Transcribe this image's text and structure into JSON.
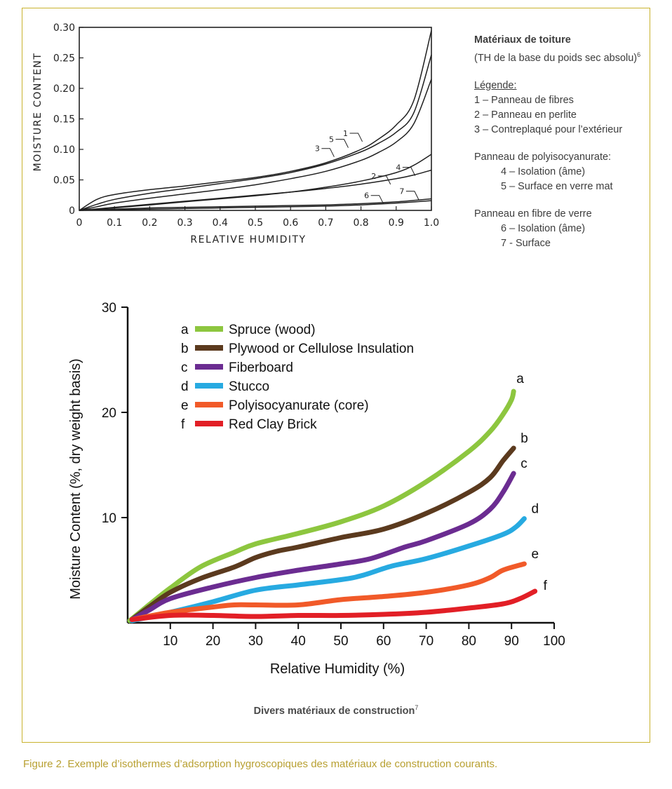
{
  "side_legend": {
    "title": "Matériaux de toiture",
    "subtitle": "(TH de la base du poids sec absolu)",
    "subtitle_sup": "6",
    "legend_heading": "Légende:",
    "items_roof": [
      "1 – Panneau de fibres",
      "2 – Panneau en perlite",
      "3 – Contreplaqué pour l’extérieur"
    ],
    "polyiso_heading": "Panneau de polyisocyanurate:",
    "items_polyiso": [
      "4 – Isolation (âme)",
      "5 – Surface en verre mat"
    ],
    "fiberglass_heading": "Panneau en fibre de verre",
    "items_fiberglass": [
      "6 – Isolation (âme)",
      "7 - Surface"
    ]
  },
  "bottom_caption": {
    "text": "Divers matériaux de construction",
    "sup": "7"
  },
  "figure_caption": "Figure 2.  Exemple d’isothermes d’adsorption hygroscopiques des matériaux de construction courants.",
  "chart_data": [
    {
      "type": "line",
      "xlabel": "RELATIVE HUMIDITY",
      "ylabel": "MOISTURE CONTENT",
      "xlim": [
        0,
        1.0
      ],
      "ylim": [
        0,
        0.3
      ],
      "x_ticks": [
        "0",
        "0.1",
        "0.2",
        "0.3",
        "0.4",
        "0.5",
        "0.6",
        "0.7",
        "0.8",
        "0.9",
        "1.0"
      ],
      "y_ticks": [
        "0",
        "0.05",
        "0.10",
        "0.15",
        "0.20",
        "0.25",
        "0.30"
      ],
      "grid": false,
      "series": [
        {
          "name": "1",
          "x": [
            0,
            0.05,
            0.1,
            0.2,
            0.3,
            0.4,
            0.5,
            0.6,
            0.7,
            0.8,
            0.85,
            0.9,
            0.95,
            1.0
          ],
          "y": [
            0,
            0.018,
            0.026,
            0.034,
            0.04,
            0.047,
            0.054,
            0.064,
            0.078,
            0.1,
            0.117,
            0.14,
            0.18,
            0.295
          ]
        },
        {
          "name": "3",
          "x": [
            0,
            0.05,
            0.1,
            0.2,
            0.3,
            0.4,
            0.5,
            0.6,
            0.7,
            0.8,
            0.85,
            0.9,
            0.95,
            1.0
          ],
          "y": [
            0,
            0.01,
            0.018,
            0.028,
            0.036,
            0.044,
            0.052,
            0.062,
            0.076,
            0.096,
            0.11,
            0.128,
            0.16,
            0.255
          ]
        },
        {
          "name": "5",
          "x": [
            0,
            0.05,
            0.1,
            0.2,
            0.3,
            0.4,
            0.5,
            0.6,
            0.7,
            0.8,
            0.85,
            0.9,
            0.95,
            1.0
          ],
          "y": [
            0,
            0.006,
            0.012,
            0.02,
            0.027,
            0.034,
            0.042,
            0.052,
            0.064,
            0.082,
            0.095,
            0.112,
            0.142,
            0.215
          ]
        },
        {
          "name": "2",
          "x": [
            0,
            0.1,
            0.2,
            0.3,
            0.4,
            0.5,
            0.6,
            0.7,
            0.8,
            0.9,
            0.95,
            1.0
          ],
          "y": [
            0,
            0.005,
            0.01,
            0.015,
            0.02,
            0.025,
            0.03,
            0.036,
            0.043,
            0.052,
            0.058,
            0.066
          ]
        },
        {
          "name": "4",
          "x": [
            0,
            0.1,
            0.2,
            0.3,
            0.4,
            0.5,
            0.6,
            0.7,
            0.8,
            0.9,
            0.95,
            1.0
          ],
          "y": [
            0,
            0.004,
            0.009,
            0.014,
            0.019,
            0.024,
            0.03,
            0.038,
            0.048,
            0.062,
            0.074,
            0.092
          ]
        },
        {
          "name": "6",
          "x": [
            0,
            0.1,
            0.2,
            0.3,
            0.4,
            0.5,
            0.6,
            0.7,
            0.8,
            0.9,
            1.0
          ],
          "y": [
            0,
            0.002,
            0.004,
            0.005,
            0.006,
            0.007,
            0.008,
            0.009,
            0.011,
            0.014,
            0.019
          ]
        },
        {
          "name": "7",
          "x": [
            0,
            0.1,
            0.2,
            0.3,
            0.4,
            0.5,
            0.6,
            0.7,
            0.8,
            0.9,
            1.0
          ],
          "y": [
            0,
            0.001,
            0.002,
            0.003,
            0.004,
            0.005,
            0.006,
            0.007,
            0.009,
            0.012,
            0.016
          ]
        }
      ]
    },
    {
      "type": "line",
      "xlabel": "Relative Humidity (%)",
      "ylabel": "Moisture Content (%, dry weight basis)",
      "xlim": [
        0,
        100
      ],
      "ylim": [
        0,
        30
      ],
      "x_ticks": [
        "10",
        "20",
        "30",
        "40",
        "50",
        "60",
        "70",
        "80",
        "90",
        "100"
      ],
      "y_ticks": [
        "10",
        "20",
        "30"
      ],
      "grid": false,
      "legend_position": "top-left",
      "series": [
        {
          "name": "Spruce (wood)",
          "letter": "a",
          "color": "#8dc63f",
          "x": [
            0.5,
            5,
            10,
            17,
            25,
            30,
            40,
            50,
            60,
            70,
            80,
            85,
            88,
            90,
            90.5
          ],
          "y": [
            0.2,
            1.7,
            3.3,
            5.3,
            6.7,
            7.5,
            8.5,
            9.6,
            11.1,
            13.4,
            16.3,
            18.2,
            19.8,
            21.2,
            22
          ]
        },
        {
          "name": "Plywood or Cellulose Insulation",
          "letter": "b",
          "color": "#5b3a1e",
          "x": [
            1,
            5,
            10,
            17,
            25,
            30,
            35,
            40,
            50,
            60,
            70,
            80,
            85,
            88,
            90.5
          ],
          "y": [
            0.3,
            1.5,
            2.9,
            4.2,
            5.3,
            6.2,
            6.8,
            7.2,
            8.1,
            8.9,
            10.4,
            12.4,
            13.8,
            15.4,
            16.6
          ]
        },
        {
          "name": "Fiberboard",
          "letter": "c",
          "color": "#6b2c91",
          "x": [
            1,
            5,
            10,
            20,
            30,
            40,
            50,
            57,
            65,
            70,
            80,
            85,
            88,
            90.5
          ],
          "y": [
            0.3,
            1.2,
            2.3,
            3.4,
            4.3,
            5.0,
            5.6,
            6.1,
            7.2,
            7.8,
            9.4,
            10.8,
            12.4,
            14.2
          ]
        },
        {
          "name": "Stucco",
          "letter": "d",
          "color": "#27aae1",
          "x": [
            1,
            10,
            20,
            30,
            40,
            50,
            55,
            62,
            70,
            80,
            88,
            91,
            93
          ],
          "y": [
            0.2,
            1.0,
            2.0,
            3.1,
            3.6,
            4.1,
            4.5,
            5.4,
            6.1,
            7.3,
            8.4,
            9.1,
            9.9
          ]
        },
        {
          "name": "Polyisocyanurate (core)",
          "letter": "e",
          "color": "#f15a29",
          "x": [
            1,
            10,
            20,
            25,
            30,
            40,
            50,
            60,
            70,
            80,
            85,
            88,
            93
          ],
          "y": [
            0.3,
            1.0,
            1.5,
            1.7,
            1.7,
            1.7,
            2.2,
            2.5,
            2.9,
            3.6,
            4.3,
            5.0,
            5.6
          ]
        },
        {
          "name": "Red Clay Brick",
          "letter": "f",
          "color": "#e21f26",
          "x": [
            1,
            10,
            20,
            30,
            40,
            50,
            60,
            70,
            80,
            88,
            92,
            95.5
          ],
          "y": [
            0.3,
            0.7,
            0.7,
            0.6,
            0.7,
            0.7,
            0.8,
            1.0,
            1.4,
            1.8,
            2.3,
            3.0
          ]
        }
      ]
    }
  ]
}
